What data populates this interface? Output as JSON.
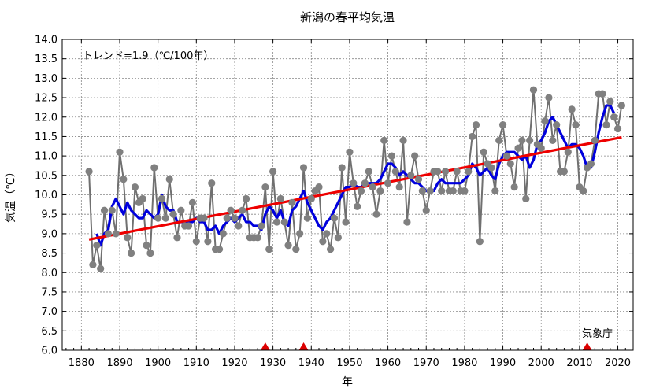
{
  "chart_data": {
    "type": "line",
    "title": "新潟の春平均気温",
    "xlabel": "年",
    "ylabel": "気温（℃）",
    "xlim": [
      1875,
      2024
    ],
    "ylim": [
      6.0,
      14.0
    ],
    "xticks": [
      1880,
      1890,
      1900,
      1910,
      1920,
      1930,
      1940,
      1950,
      1960,
      1970,
      1980,
      1990,
      2000,
      2010,
      2020
    ],
    "yticks": [
      6.0,
      6.5,
      7.0,
      7.5,
      8.0,
      8.5,
      9.0,
      9.5,
      10.0,
      10.5,
      11.0,
      11.5,
      12.0,
      12.5,
      13.0,
      13.5,
      14.0
    ],
    "grid": true,
    "trend_label": "トレンド=1.9（℃/100年）",
    "credit": "気象庁",
    "station_change_years": [
      1928,
      1938,
      2012
    ],
    "series": [
      {
        "role": "annual",
        "color": "#707070",
        "x": [
          1882,
          1883,
          1884,
          1885,
          1886,
          1887,
          1888,
          1889,
          1890,
          1891,
          1892,
          1893,
          1894,
          1895,
          1896,
          1897,
          1898,
          1899,
          1900,
          1901,
          1902,
          1903,
          1904,
          1905,
          1906,
          1907,
          1908,
          1909,
          1910,
          1911,
          1912,
          1913,
          1914,
          1915,
          1916,
          1917,
          1918,
          1919,
          1920,
          1921,
          1922,
          1923,
          1924,
          1925,
          1926,
          1927,
          1928,
          1929,
          1930,
          1931,
          1932,
          1933,
          1934,
          1935,
          1936,
          1937,
          1938,
          1939,
          1940,
          1941,
          1942,
          1943,
          1944,
          1945,
          1946,
          1947,
          1948,
          1949,
          1950,
          1951,
          1952,
          1953,
          1954,
          1955,
          1956,
          1957,
          1958,
          1959,
          1960,
          1961,
          1962,
          1963,
          1964,
          1965,
          1966,
          1967,
          1968,
          1969,
          1970,
          1971,
          1972,
          1973,
          1974,
          1975,
          1976,
          1977,
          1978,
          1979,
          1980,
          1981,
          1982,
          1983,
          1984,
          1985,
          1986,
          1987,
          1988,
          1989,
          1990,
          1991,
          1992,
          1993,
          1994,
          1995,
          1996,
          1997,
          1998,
          1999,
          2000,
          2001,
          2002,
          2003,
          2004,
          2005,
          2006,
          2007,
          2008,
          2009,
          2010,
          2011,
          2012,
          2013,
          2014,
          2015,
          2016,
          2017,
          2018,
          2019,
          2020,
          2021
        ],
        "values": [
          10.6,
          8.2,
          8.7,
          8.1,
          9.6,
          9.0,
          9.6,
          9.0,
          11.1,
          10.4,
          8.9,
          8.5,
          10.2,
          9.8,
          9.9,
          8.7,
          8.5,
          10.7,
          9.4,
          9.9,
          9.4,
          10.4,
          9.5,
          8.9,
          9.6,
          9.2,
          9.2,
          9.8,
          8.8,
          9.4,
          9.4,
          8.8,
          10.3,
          8.6,
          8.6,
          9.0,
          9.4,
          9.6,
          9.4,
          9.2,
          9.6,
          9.9,
          8.9,
          8.9,
          8.9,
          9.2,
          10.2,
          8.6,
          10.6,
          9.3,
          9.9,
          9.3,
          8.7,
          9.8,
          8.6,
          9.0,
          10.7,
          9.4,
          9.9,
          10.1,
          10.2,
          8.8,
          9.0,
          8.6,
          9.4,
          8.9,
          10.7,
          9.3,
          11.1,
          10.3,
          9.7,
          10.1,
          10.3,
          10.6,
          10.2,
          9.5,
          10.1,
          11.4,
          10.3,
          11.0,
          10.6,
          10.2,
          11.4,
          9.3,
          10.5,
          11.0,
          10.4,
          10.1,
          9.6,
          10.1,
          10.6,
          10.6,
          10.1,
          10.6,
          10.1,
          10.1,
          10.6,
          10.1,
          10.1,
          10.6,
          11.5,
          11.8,
          8.8,
          11.1,
          10.8,
          10.7,
          10.1,
          11.4,
          11.8,
          11.0,
          10.8,
          10.2,
          11.2,
          11.4,
          9.9,
          11.4,
          12.7,
          11.3,
          11.2,
          11.9,
          12.5,
          11.4,
          11.8,
          10.6,
          10.6,
          11.1,
          12.2,
          11.8,
          10.2,
          10.1,
          10.7,
          10.8,
          11.4,
          12.6,
          12.6,
          11.8,
          12.4,
          12.0,
          11.7,
          12.3
        ]
      },
      {
        "role": "5-year running mean",
        "color": "#0000dd",
        "x": [
          1884,
          1885,
          1886,
          1887,
          1888,
          1889,
          1890,
          1891,
          1892,
          1893,
          1894,
          1895,
          1896,
          1897,
          1898,
          1899,
          1900,
          1901,
          1902,
          1903,
          1904,
          1905,
          1906,
          1907,
          1908,
          1909,
          1910,
          1911,
          1912,
          1913,
          1914,
          1915,
          1916,
          1917,
          1918,
          1919,
          1920,
          1921,
          1922,
          1923,
          1924,
          1925,
          1926,
          1927,
          1928,
          1929,
          1930,
          1931,
          1932,
          1933,
          1934,
          1935,
          1936,
          1937,
          1938,
          1939,
          1940,
          1941,
          1942,
          1943,
          1944,
          1945,
          1946,
          1947,
          1948,
          1949,
          1950,
          1951,
          1952,
          1953,
          1954,
          1955,
          1956,
          1957,
          1958,
          1959,
          1960,
          1961,
          1962,
          1963,
          1964,
          1965,
          1966,
          1967,
          1968,
          1969,
          1970,
          1971,
          1972,
          1973,
          1974,
          1975,
          1976,
          1977,
          1978,
          1979,
          1980,
          1981,
          1982,
          1983,
          1984,
          1985,
          1986,
          1987,
          1988,
          1989,
          1990,
          1991,
          1992,
          1993,
          1994,
          1995,
          1996,
          1997,
          1998,
          1999,
          2000,
          2001,
          2002,
          2003,
          2004,
          2005,
          2006,
          2007,
          2008,
          2009,
          2010,
          2011,
          2012,
          2013,
          2014,
          2015,
          2016,
          2017,
          2018,
          2019
        ],
        "values": [
          9.0,
          8.7,
          9.0,
          9.1,
          9.7,
          9.9,
          9.7,
          9.5,
          9.8,
          9.6,
          9.5,
          9.4,
          9.4,
          9.6,
          9.5,
          9.4,
          9.5,
          10.0,
          9.7,
          9.6,
          9.6,
          9.3,
          9.3,
          9.3,
          9.3,
          9.3,
          9.4,
          9.3,
          9.3,
          9.1,
          9.1,
          9.2,
          9.0,
          9.2,
          9.3,
          9.4,
          9.3,
          9.4,
          9.5,
          9.3,
          9.3,
          9.2,
          9.2,
          9.1,
          9.5,
          9.7,
          9.6,
          9.4,
          9.6,
          9.3,
          9.2,
          9.6,
          9.7,
          9.9,
          10.1,
          9.8,
          9.6,
          9.4,
          9.2,
          9.1,
          9.3,
          9.4,
          9.6,
          9.8,
          10.0,
          10.2,
          10.2,
          10.3,
          10.2,
          10.2,
          10.3,
          10.3,
          10.3,
          10.3,
          10.4,
          10.6,
          10.8,
          10.8,
          10.7,
          10.5,
          10.6,
          10.5,
          10.4,
          10.3,
          10.3,
          10.2,
          10.1,
          10.1,
          10.1,
          10.3,
          10.4,
          10.3,
          10.3,
          10.3,
          10.3,
          10.3,
          10.4,
          10.5,
          10.8,
          10.7,
          10.5,
          10.6,
          10.7,
          10.5,
          10.4,
          10.8,
          11.0,
          11.1,
          11.1,
          11.1,
          11.0,
          10.9,
          11.0,
          10.7,
          10.9,
          11.3,
          11.4,
          11.6,
          11.9,
          12.0,
          11.8,
          11.6,
          11.4,
          11.2,
          11.3,
          11.3,
          11.2,
          11.0,
          10.7,
          10.7,
          11.1,
          11.6,
          12.0,
          12.3,
          12.3,
          12.1
        ]
      },
      {
        "role": "trend",
        "color": "#ee0000",
        "x": [
          1882,
          2021
        ],
        "values": [
          8.85,
          11.48
        ]
      }
    ]
  }
}
